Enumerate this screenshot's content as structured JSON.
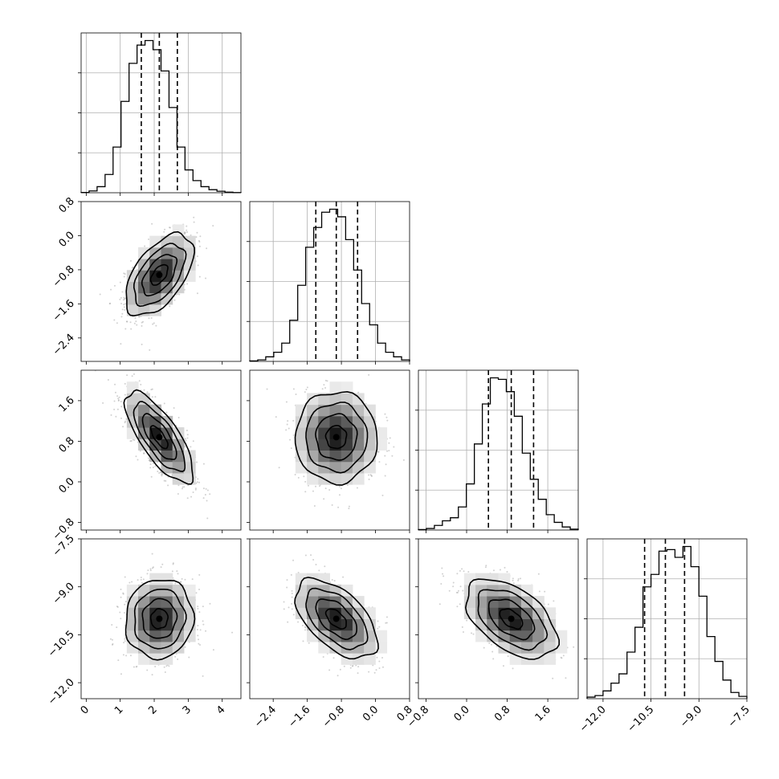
{
  "chart_data": {
    "type": "corner",
    "grid": true,
    "parameters": [
      {
        "ticks": [
          0,
          1,
          2,
          3,
          4
        ],
        "tick_labels": [
          "0",
          "1",
          "2",
          "3",
          "4"
        ],
        "range": [
          -0.15,
          4.55
        ],
        "quantiles": [
          1.62,
          2.15,
          2.68
        ],
        "mean": 2.15,
        "sd": 0.5,
        "hist": [
          0.002,
          0.012,
          0.04,
          0.12,
          0.3,
          0.6,
          0.85,
          0.97,
          1.0,
          0.94,
          0.8,
          0.56,
          0.3,
          0.15,
          0.08,
          0.04,
          0.02,
          0.01,
          0.004,
          0.001
        ]
      },
      {
        "ticks": [
          -2.4,
          -1.6,
          -0.8,
          0.0,
          0.8
        ],
        "tick_labels": [
          "−2.4",
          "−1.6",
          "−0.8",
          "0.0",
          "0.8"
        ],
        "range": [
          -2.95,
          0.8
        ],
        "quantiles": [
          -1.4,
          -0.92,
          -0.42
        ],
        "mean": -0.92,
        "sd": 0.48,
        "hist": [
          0.003,
          0.01,
          0.03,
          0.06,
          0.12,
          0.27,
          0.5,
          0.75,
          0.88,
          0.98,
          1.0,
          0.95,
          0.8,
          0.6,
          0.38,
          0.24,
          0.12,
          0.06,
          0.03,
          0.01
        ]
      },
      {
        "ticks": [
          -0.8,
          0.0,
          0.8,
          1.6
        ],
        "tick_labels": [
          "−0.8",
          "0.0",
          "0.8",
          "1.6"
        ],
        "range": [
          -0.95,
          2.2
        ],
        "quantiles": [
          0.43,
          0.88,
          1.32
        ],
        "mean": 0.88,
        "sd": 0.45,
        "hist": [
          0.003,
          0.01,
          0.03,
          0.06,
          0.08,
          0.15,
          0.3,
          0.56,
          0.82,
          0.99,
          0.98,
          0.9,
          0.74,
          0.5,
          0.33,
          0.2,
          0.1,
          0.05,
          0.02,
          0.006
        ]
      },
      {
        "ticks": [
          -12.0,
          -10.5,
          -9.0,
          -7.5
        ],
        "tick_labels": [
          "−12.0",
          "−10.5",
          "−9.0",
          "−7.5"
        ],
        "range": [
          -12.5,
          -7.5
        ],
        "quantiles": [
          -10.7,
          -10.05,
          -9.45
        ],
        "mean": -10.0,
        "sd": 0.62,
        "hist": [
          0.01,
          0.02,
          0.05,
          0.1,
          0.16,
          0.3,
          0.46,
          0.72,
          0.8,
          0.95,
          0.96,
          0.91,
          0.98,
          0.85,
          0.66,
          0.4,
          0.24,
          0.12,
          0.04,
          0.015
        ]
      }
    ],
    "pairs": [
      {
        "row": 1,
        "col": 0,
        "corr": 0.55
      },
      {
        "row": 2,
        "col": 0,
        "corr": -0.75
      },
      {
        "row": 2,
        "col": 1,
        "corr": 0.0
      },
      {
        "row": 3,
        "col": 0,
        "corr": 0.05
      },
      {
        "row": 3,
        "col": 1,
        "corr": -0.55
      },
      {
        "row": 3,
        "col": 2,
        "corr": -0.5
      }
    ]
  }
}
